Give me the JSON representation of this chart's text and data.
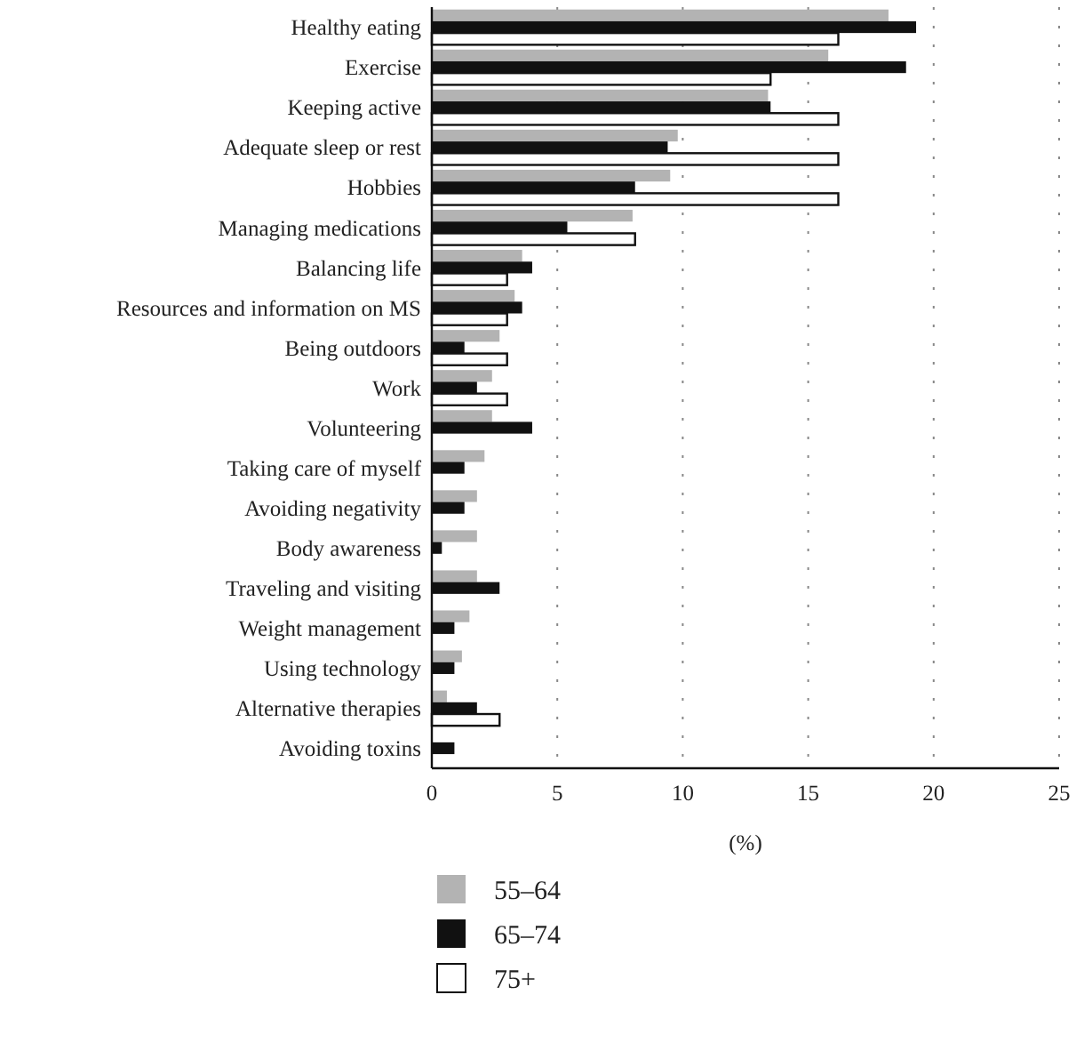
{
  "chart_data": {
    "type": "bar",
    "orientation": "horizontal",
    "xlabel": "(%)",
    "categories": [
      "Healthy eating",
      "Exercise",
      "Keeping active",
      "Adequate sleep or rest",
      "Hobbies",
      "Managing medications",
      "Balancing life",
      "Resources and information on MS",
      "Being outdoors",
      "Work",
      "Volunteering",
      "Taking care of myself",
      "Avoiding negativity",
      "Body awareness",
      "Traveling and visiting",
      "Weight management",
      "Using technology",
      "Alternative therapies",
      "Avoiding toxins"
    ],
    "series": [
      {
        "name": "55–64",
        "color": "#b3b3b3",
        "values": [
          18.2,
          15.8,
          13.4,
          9.8,
          9.5,
          8.0,
          3.6,
          3.3,
          2.7,
          2.4,
          2.4,
          2.1,
          1.8,
          1.8,
          1.8,
          1.5,
          1.2,
          0.6,
          null
        ]
      },
      {
        "name": "65–74",
        "color": "#111111",
        "values": [
          19.3,
          18.9,
          13.5,
          9.4,
          8.1,
          5.4,
          4.0,
          3.6,
          1.3,
          1.8,
          4.0,
          1.3,
          1.3,
          0.4,
          2.7,
          0.9,
          0.9,
          1.8,
          0.9
        ]
      },
      {
        "name": "75+",
        "color": "#ffffff",
        "values": [
          16.2,
          13.5,
          16.2,
          16.2,
          16.2,
          8.1,
          3.0,
          3.0,
          3.0,
          3.0,
          null,
          null,
          null,
          null,
          null,
          null,
          null,
          2.7,
          null
        ]
      }
    ],
    "xlim": [
      0,
      25
    ],
    "xticks": [
      0,
      5,
      10,
      15,
      20,
      25
    ],
    "grid": "x",
    "legend": "bottom"
  }
}
